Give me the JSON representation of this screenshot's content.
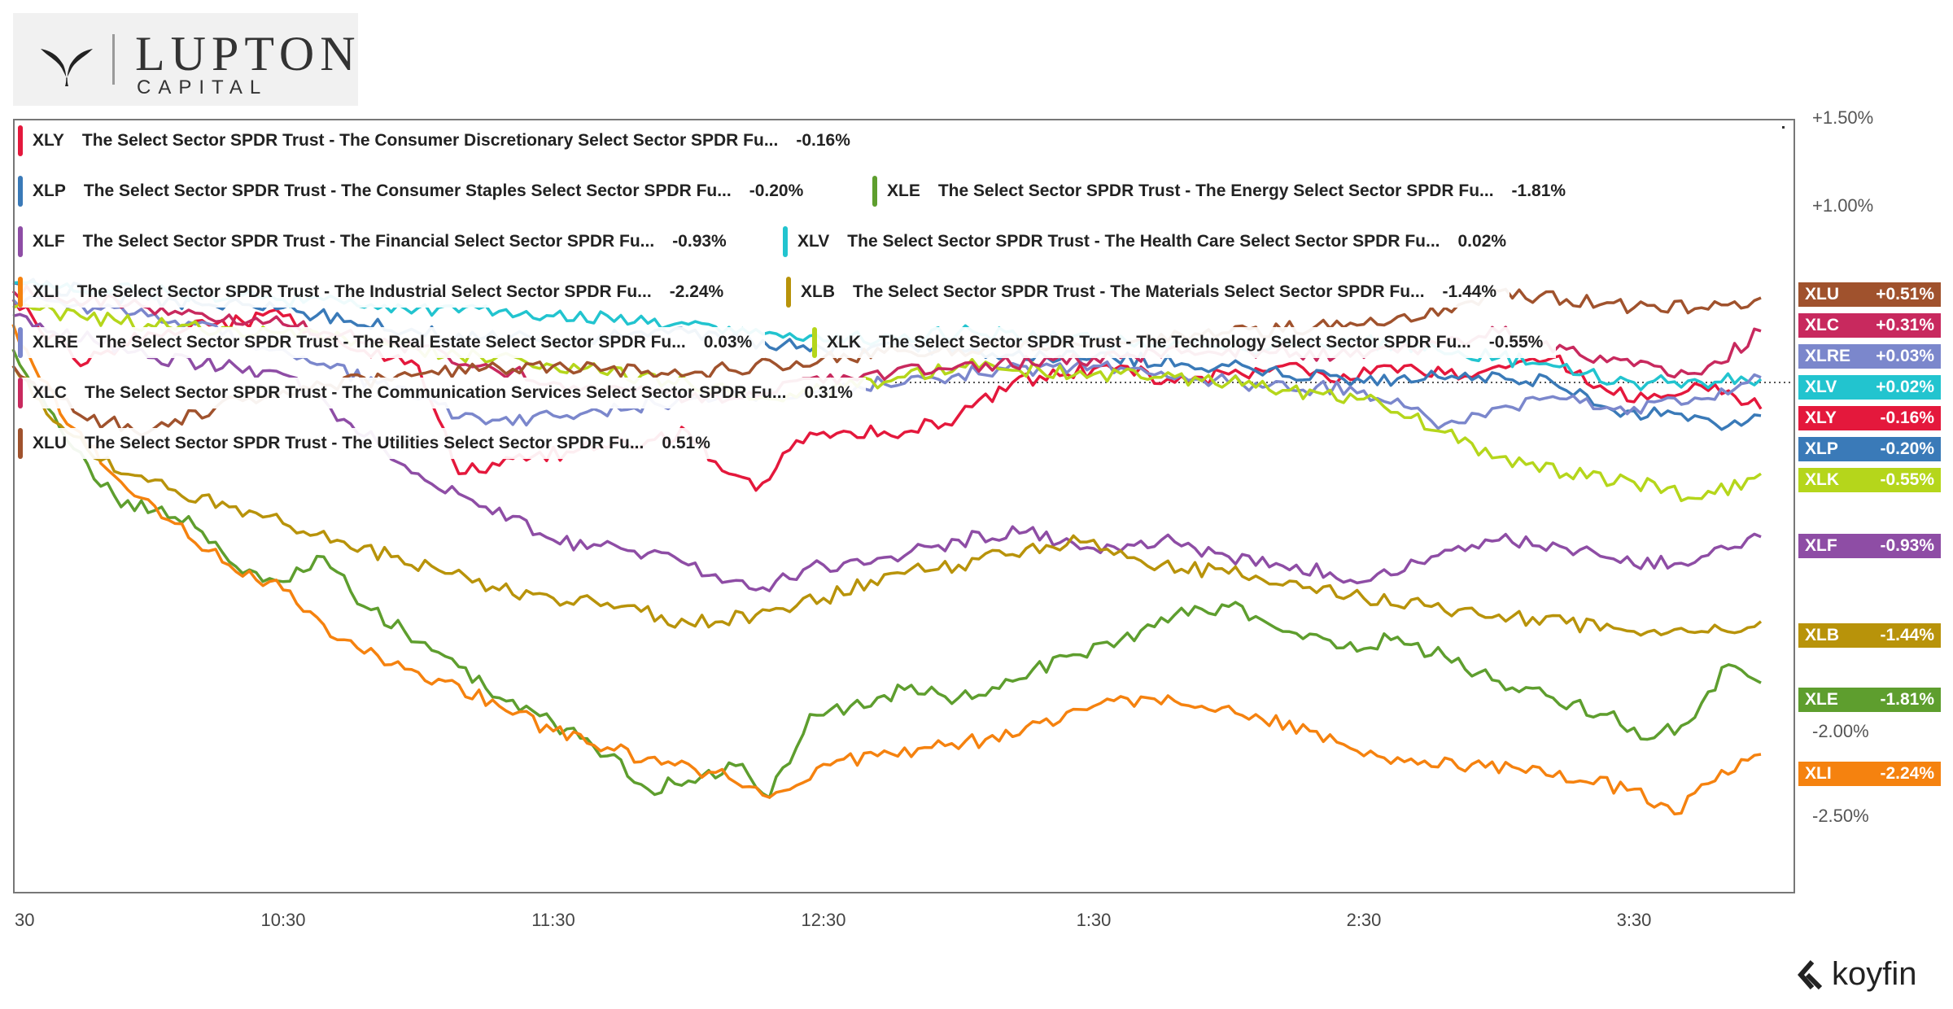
{
  "logo": {
    "brand_line1": "LUPTON",
    "brand_line2": "CAPITAL"
  },
  "footer": {
    "brand": "koyfin"
  },
  "chart_data": {
    "type": "line",
    "title": "",
    "x_ticks": [
      "30",
      "10:30",
      "11:30",
      "12:30",
      "1:30",
      "2:30",
      "3:30"
    ],
    "y_ticks": [
      "+1.50%",
      "+1.00%",
      "-2.00%",
      "-2.50%"
    ],
    "ylim": [
      -3.0,
      1.5
    ],
    "y_unit": "%",
    "x_range_hours": [
      9.5,
      16.0
    ],
    "reference_line_y": 0.0,
    "series": [
      {
        "ticker": "XLY",
        "name": "The Select Sector SPDR Trust - The Consumer Discretionary Select Sector SPDR Fu...",
        "change": "-0.16%",
        "badge": "-0.16%",
        "color": "#e4183c",
        "points": [
          [
            9.5,
            0.5
          ],
          [
            9.75,
            0.1
          ],
          [
            10.0,
            0.3
          ],
          [
            10.25,
            0.35
          ],
          [
            10.5,
            0.4
          ],
          [
            10.75,
            0.2
          ],
          [
            11.0,
            0.1
          ],
          [
            11.15,
            -0.55
          ],
          [
            11.3,
            -0.5
          ],
          [
            11.6,
            -0.4
          ],
          [
            11.85,
            -0.35
          ],
          [
            12.0,
            -0.3
          ],
          [
            12.15,
            -0.55
          ],
          [
            12.25,
            -0.65
          ],
          [
            12.4,
            -0.35
          ],
          [
            12.6,
            -0.3
          ],
          [
            12.8,
            -0.3
          ],
          [
            13.0,
            -0.2
          ],
          [
            13.2,
            0.0
          ],
          [
            13.4,
            0.05
          ],
          [
            13.6,
            0.1
          ],
          [
            13.8,
            0.0
          ],
          [
            14.0,
            0.05
          ],
          [
            14.2,
            0.1
          ],
          [
            14.4,
            0.0
          ],
          [
            14.6,
            0.1
          ],
          [
            14.8,
            0.05
          ],
          [
            15.0,
            0.1
          ],
          [
            15.2,
            0.15
          ],
          [
            15.4,
            -0.05
          ],
          [
            15.55,
            -0.1
          ],
          [
            15.7,
            -0.05
          ],
          [
            15.85,
            -0.05
          ],
          [
            15.97,
            -0.16
          ]
        ]
      },
      {
        "ticker": "XLP",
        "name": "The Select Sector SPDR Trust - The Consumer Staples Select Sector SPDR Fu...",
        "change": "-0.20%",
        "badge": "-0.20%",
        "color": "#3a7ab8",
        "points": [
          [
            9.5,
            0.6
          ],
          [
            10.0,
            0.5
          ],
          [
            10.5,
            0.45
          ],
          [
            11.0,
            0.3
          ],
          [
            11.5,
            0.25
          ],
          [
            12.0,
            0.3
          ],
          [
            12.5,
            0.2
          ],
          [
            13.0,
            0.2
          ],
          [
            13.5,
            0.15
          ],
          [
            14.0,
            0.1
          ],
          [
            14.5,
            0.0
          ],
          [
            15.0,
            0.05
          ],
          [
            15.2,
            0.0
          ],
          [
            15.4,
            -0.15
          ],
          [
            15.6,
            -0.2
          ],
          [
            15.8,
            -0.25
          ],
          [
            15.97,
            -0.2
          ]
        ]
      },
      {
        "ticker": "XLE",
        "name": "The Select Sector SPDR Trust - The Energy Select Sector SPDR Fu...",
        "change": "-1.81%",
        "badge": "-1.81%",
        "color": "#5e9e2e",
        "points": [
          [
            9.5,
            0.2
          ],
          [
            9.7,
            -0.35
          ],
          [
            9.9,
            -0.75
          ],
          [
            10.05,
            -0.75
          ],
          [
            10.2,
            -0.9
          ],
          [
            10.35,
            -1.15
          ],
          [
            10.5,
            -1.2
          ],
          [
            10.65,
            -1.05
          ],
          [
            10.8,
            -1.35
          ],
          [
            10.95,
            -1.5
          ],
          [
            11.1,
            -1.65
          ],
          [
            11.3,
            -1.9
          ],
          [
            11.5,
            -2.05
          ],
          [
            11.7,
            -2.25
          ],
          [
            11.85,
            -2.45
          ],
          [
            12.0,
            -2.4
          ],
          [
            12.2,
            -2.3
          ],
          [
            12.3,
            -2.5
          ],
          [
            12.45,
            -2.0
          ],
          [
            12.6,
            -1.95
          ],
          [
            12.8,
            -1.85
          ],
          [
            13.0,
            -1.9
          ],
          [
            13.2,
            -1.8
          ],
          [
            13.4,
            -1.65
          ],
          [
            13.6,
            -1.55
          ],
          [
            13.8,
            -1.4
          ],
          [
            14.0,
            -1.35
          ],
          [
            14.2,
            -1.5
          ],
          [
            14.4,
            -1.6
          ],
          [
            14.6,
            -1.55
          ],
          [
            14.8,
            -1.65
          ],
          [
            15.0,
            -1.8
          ],
          [
            15.2,
            -1.9
          ],
          [
            15.4,
            -2.0
          ],
          [
            15.55,
            -2.15
          ],
          [
            15.7,
            -2.05
          ],
          [
            15.85,
            -1.7
          ],
          [
            15.97,
            -1.81
          ]
        ]
      },
      {
        "ticker": "XLF",
        "name": "The Select Sector SPDR Trust - The Financial Select Sector SPDR Fu...",
        "change": "-0.93%",
        "badge": "-0.93%",
        "color": "#8e4da5",
        "points": [
          [
            9.5,
            0.4
          ],
          [
            10.0,
            0.15
          ],
          [
            10.5,
            0.05
          ],
          [
            10.75,
            -0.25
          ],
          [
            11.0,
            -0.55
          ],
          [
            11.25,
            -0.75
          ],
          [
            11.5,
            -0.95
          ],
          [
            11.75,
            -1.0
          ],
          [
            12.0,
            -1.1
          ],
          [
            12.25,
            -1.25
          ],
          [
            12.5,
            -1.1
          ],
          [
            12.75,
            -1.05
          ],
          [
            13.0,
            -0.95
          ],
          [
            13.25,
            -0.9
          ],
          [
            13.5,
            -1.0
          ],
          [
            13.75,
            -0.95
          ],
          [
            14.0,
            -1.05
          ],
          [
            14.25,
            -1.1
          ],
          [
            14.5,
            -1.2
          ],
          [
            14.75,
            -1.05
          ],
          [
            15.0,
            -0.95
          ],
          [
            15.25,
            -1.0
          ],
          [
            15.5,
            -1.1
          ],
          [
            15.75,
            -1.05
          ],
          [
            15.97,
            -0.93
          ]
        ]
      },
      {
        "ticker": "XLV",
        "name": "The Select Sector SPDR Trust - The Health Care Select Sector SPDR Fu...",
        "change": "0.02%",
        "badge": "+0.02%",
        "color": "#22c4cf",
        "points": [
          [
            9.5,
            0.6
          ],
          [
            10.0,
            0.55
          ],
          [
            10.5,
            0.5
          ],
          [
            11.0,
            0.45
          ],
          [
            11.5,
            0.4
          ],
          [
            12.0,
            0.35
          ],
          [
            12.5,
            0.25
          ],
          [
            13.0,
            0.3
          ],
          [
            13.5,
            0.25
          ],
          [
            14.0,
            0.2
          ],
          [
            14.5,
            0.25
          ],
          [
            15.0,
            0.15
          ],
          [
            15.2,
            0.1
          ],
          [
            15.5,
            0.0
          ],
          [
            15.75,
            0.0
          ],
          [
            15.97,
            0.02
          ]
        ]
      },
      {
        "ticker": "XLI",
        "name": "The Select Sector SPDR Trust - The Industrial Select Sector SPDR Fu...",
        "change": "-2.24%",
        "badge": "-2.24%",
        "color": "#f5820f",
        "points": [
          [
            9.5,
            0.35
          ],
          [
            9.7,
            -0.25
          ],
          [
            9.9,
            -0.6
          ],
          [
            10.1,
            -0.85
          ],
          [
            10.3,
            -1.1
          ],
          [
            10.5,
            -1.25
          ],
          [
            10.7,
            -1.55
          ],
          [
            10.9,
            -1.7
          ],
          [
            11.1,
            -1.8
          ],
          [
            11.3,
            -1.95
          ],
          [
            11.5,
            -2.1
          ],
          [
            11.7,
            -2.2
          ],
          [
            11.9,
            -2.3
          ],
          [
            12.1,
            -2.35
          ],
          [
            12.3,
            -2.5
          ],
          [
            12.5,
            -2.3
          ],
          [
            12.7,
            -2.25
          ],
          [
            12.9,
            -2.2
          ],
          [
            13.1,
            -2.15
          ],
          [
            13.3,
            -2.05
          ],
          [
            13.5,
            -1.95
          ],
          [
            13.7,
            -1.9
          ],
          [
            13.9,
            -1.95
          ],
          [
            14.1,
            -2.0
          ],
          [
            14.3,
            -2.1
          ],
          [
            14.5,
            -2.25
          ],
          [
            14.7,
            -2.3
          ],
          [
            14.9,
            -2.3
          ],
          [
            15.1,
            -2.35
          ],
          [
            15.3,
            -2.4
          ],
          [
            15.5,
            -2.45
          ],
          [
            15.65,
            -2.6
          ],
          [
            15.8,
            -2.4
          ],
          [
            15.97,
            -2.24
          ]
        ]
      },
      {
        "ticker": "XLB",
        "name": "The Select Sector SPDR Trust - The Materials Select Sector SPDR Fu...",
        "change": "-1.44%",
        "badge": "-1.44%",
        "color": "#b8930a",
        "points": [
          [
            9.5,
            0.1
          ],
          [
            9.7,
            -0.3
          ],
          [
            9.9,
            -0.55
          ],
          [
            10.1,
            -0.65
          ],
          [
            10.3,
            -0.75
          ],
          [
            10.5,
            -0.85
          ],
          [
            10.7,
            -0.95
          ],
          [
            10.9,
            -1.05
          ],
          [
            11.1,
            -1.15
          ],
          [
            11.3,
            -1.25
          ],
          [
            11.5,
            -1.3
          ],
          [
            11.75,
            -1.35
          ],
          [
            12.0,
            -1.45
          ],
          [
            12.25,
            -1.4
          ],
          [
            12.5,
            -1.3
          ],
          [
            12.75,
            -1.15
          ],
          [
            13.0,
            -1.1
          ],
          [
            13.25,
            -1.0
          ],
          [
            13.5,
            -0.95
          ],
          [
            13.75,
            -1.1
          ],
          [
            14.0,
            -1.15
          ],
          [
            14.25,
            -1.2
          ],
          [
            14.5,
            -1.3
          ],
          [
            14.75,
            -1.35
          ],
          [
            15.0,
            -1.4
          ],
          [
            15.25,
            -1.45
          ],
          [
            15.5,
            -1.5
          ],
          [
            15.75,
            -1.5
          ],
          [
            15.97,
            -1.44
          ]
        ]
      },
      {
        "ticker": "XLRE",
        "name": "The Select Sector SPDR Trust - The Real Estate Select Sector SPDR Fu...",
        "change": "0.03%",
        "badge": "+0.03%",
        "color": "#7b87cc",
        "points": [
          [
            9.5,
            0.5
          ],
          [
            10.0,
            0.4
          ],
          [
            10.5,
            0.2
          ],
          [
            11.0,
            -0.1
          ],
          [
            11.25,
            -0.25
          ],
          [
            11.5,
            -0.2
          ],
          [
            12.0,
            -0.1
          ],
          [
            12.5,
            -0.05
          ],
          [
            13.0,
            0.05
          ],
          [
            13.5,
            0.1
          ],
          [
            14.0,
            0.0
          ],
          [
            14.5,
            -0.05
          ],
          [
            14.8,
            -0.25
          ],
          [
            15.0,
            -0.15
          ],
          [
            15.25,
            -0.1
          ],
          [
            15.5,
            -0.15
          ],
          [
            15.75,
            -0.1
          ],
          [
            15.97,
            0.03
          ]
        ]
      },
      {
        "ticker": "XLK",
        "name": "The Select Sector SPDR Trust - The Technology Select Sector SPDR Fu...",
        "change": "-0.55%",
        "badge": "-0.55%",
        "color": "#b5d61b",
        "points": [
          [
            9.5,
            0.45
          ],
          [
            10.0,
            0.35
          ],
          [
            10.5,
            0.3
          ],
          [
            11.0,
            0.2
          ],
          [
            11.5,
            0.1
          ],
          [
            12.0,
            0.0
          ],
          [
            12.25,
            -0.1
          ],
          [
            12.5,
            -0.05
          ],
          [
            13.0,
            0.1
          ],
          [
            13.5,
            0.05
          ],
          [
            14.0,
            0.0
          ],
          [
            14.5,
            -0.1
          ],
          [
            14.8,
            -0.3
          ],
          [
            15.0,
            -0.45
          ],
          [
            15.25,
            -0.55
          ],
          [
            15.5,
            -0.6
          ],
          [
            15.75,
            -0.7
          ],
          [
            15.97,
            -0.55
          ]
        ]
      },
      {
        "ticker": "XLC",
        "name": "The Select Sector SPDR Trust - The Communication Services Select Sector SPDR Fu...",
        "change": "0.31%",
        "badge": "+0.31%",
        "color": "#c8295e",
        "points": [
          [
            9.5,
            0.55
          ],
          [
            10.0,
            0.45
          ],
          [
            10.5,
            0.35
          ],
          [
            11.0,
            0.2
          ],
          [
            11.5,
            0.0
          ],
          [
            12.0,
            -0.1
          ],
          [
            12.5,
            0.0
          ],
          [
            12.75,
            0.05
          ],
          [
            13.0,
            0.1
          ],
          [
            13.5,
            0.15
          ],
          [
            14.0,
            0.2
          ],
          [
            14.5,
            0.15
          ],
          [
            14.8,
            0.25
          ],
          [
            15.0,
            0.3
          ],
          [
            15.25,
            0.2
          ],
          [
            15.5,
            0.1
          ],
          [
            15.75,
            0.05
          ],
          [
            15.97,
            0.31
          ]
        ]
      },
      {
        "ticker": "XLU",
        "name": "The Select Sector SPDR Trust - The Utilities Select Sector SPDR Fu...",
        "change": "0.51%",
        "badge": "+0.51%",
        "color": "#a0522d",
        "points": [
          [
            9.5,
            0.1
          ],
          [
            9.75,
            -0.2
          ],
          [
            10.0,
            -0.3
          ],
          [
            10.25,
            -0.15
          ],
          [
            10.5,
            -0.05
          ],
          [
            11.0,
            0.05
          ],
          [
            11.5,
            0.1
          ],
          [
            12.0,
            0.05
          ],
          [
            12.5,
            0.15
          ],
          [
            13.0,
            0.2
          ],
          [
            13.5,
            0.25
          ],
          [
            14.0,
            0.3
          ],
          [
            14.5,
            0.35
          ],
          [
            14.8,
            0.45
          ],
          [
            15.0,
            0.55
          ],
          [
            15.25,
            0.5
          ],
          [
            15.5,
            0.45
          ],
          [
            15.75,
            0.45
          ],
          [
            15.97,
            0.51
          ]
        ]
      }
    ]
  }
}
